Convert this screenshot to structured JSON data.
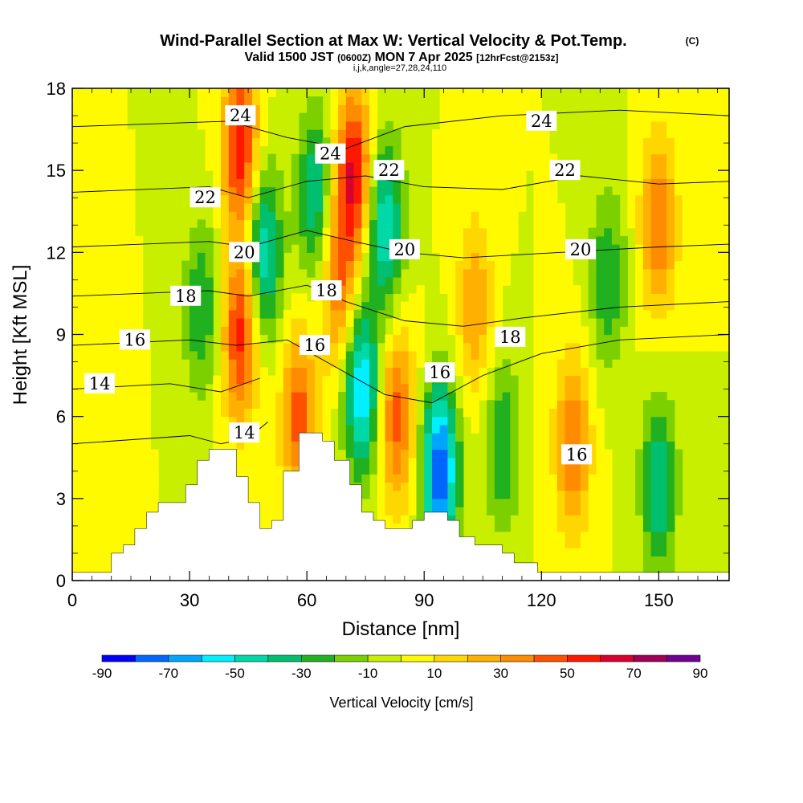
{
  "title": {
    "main": "Wind-Parallel Section at Max W: Vertical Velocity & Pot.Temp.",
    "copyright": "(C)",
    "valid_prefix": "Valid 1500 JST",
    "valid_zulu": "(0600Z)",
    "valid_date": "MON 7 Apr 2025",
    "forecast": "[12hrFcst@2153z]",
    "params": "i,j,k,angle=27,28,24,110"
  },
  "chart_data": {
    "type": "heatmap",
    "title": "Wind-Parallel Section at Max W: Vertical Velocity & Pot.Temp.",
    "xlabel": "Distance [nm]",
    "ylabel": "Height [Kft MSL]",
    "xlim": [
      0,
      168
    ],
    "ylim": [
      0,
      18
    ],
    "x_ticks": [
      0,
      30,
      60,
      90,
      120,
      150
    ],
    "y_ticks": [
      0,
      3,
      6,
      9,
      12,
      15,
      18
    ],
    "colorbar": {
      "label": "Vertical Velocity [cm/s]",
      "ticks": [
        -90,
        -70,
        -50,
        -30,
        -10,
        10,
        30,
        50,
        70,
        90
      ],
      "levels": [
        -90,
        -80,
        -70,
        -60,
        -50,
        -40,
        -30,
        -20,
        -10,
        0,
        10,
        20,
        30,
        40,
        50,
        60,
        70,
        80,
        90
      ],
      "colors": [
        "#0000ff",
        "#0066ff",
        "#00a5ff",
        "#00f0ff",
        "#00d8a8",
        "#00c070",
        "#20b020",
        "#7cd000",
        "#c8ee00",
        "#fffa00",
        "#ffd700",
        "#ffb000",
        "#ff8c00",
        "#ff5000",
        "#ff1800",
        "#d8002c",
        "#a0005a",
        "#700090"
      ]
    },
    "terrain_kft": [
      [
        0,
        0.3
      ],
      [
        10,
        0.3
      ],
      [
        10,
        1.0
      ],
      [
        13,
        1.0
      ],
      [
        13,
        1.3
      ],
      [
        16,
        1.3
      ],
      [
        16,
        1.9
      ],
      [
        19,
        1.9
      ],
      [
        19,
        2.5
      ],
      [
        22,
        2.5
      ],
      [
        22,
        2.85
      ],
      [
        29,
        2.85
      ],
      [
        29,
        3.5
      ],
      [
        32,
        3.5
      ],
      [
        32,
        4.4
      ],
      [
        35,
        4.4
      ],
      [
        35,
        4.8
      ],
      [
        42,
        4.8
      ],
      [
        42,
        3.8
      ],
      [
        45,
        3.8
      ],
      [
        45,
        2.85
      ],
      [
        48,
        2.85
      ],
      [
        48,
        1.9
      ],
      [
        51,
        1.9
      ],
      [
        51,
        2.2
      ],
      [
        54,
        2.2
      ],
      [
        54,
        4.0
      ],
      [
        58,
        4.0
      ],
      [
        58,
        5.4
      ],
      [
        64,
        5.4
      ],
      [
        64,
        5.1
      ],
      [
        67,
        5.1
      ],
      [
        67,
        4.4
      ],
      [
        71,
        4.4
      ],
      [
        71,
        3.5
      ],
      [
        74,
        3.5
      ],
      [
        74,
        2.5
      ],
      [
        77,
        2.5
      ],
      [
        77,
        2.2
      ],
      [
        80,
        2.2
      ],
      [
        80,
        1.9
      ],
      [
        87,
        1.9
      ],
      [
        87,
        2.2
      ],
      [
        90,
        2.2
      ],
      [
        90,
        2.5
      ],
      [
        96,
        2.5
      ],
      [
        96,
        2.2
      ],
      [
        99,
        2.2
      ],
      [
        99,
        1.6
      ],
      [
        103,
        1.6
      ],
      [
        103,
        1.3
      ],
      [
        110,
        1.3
      ],
      [
        110,
        1.0
      ],
      [
        113,
        1.0
      ],
      [
        113,
        0.65
      ],
      [
        119,
        0.65
      ],
      [
        119,
        0.3
      ],
      [
        168,
        0.3
      ]
    ],
    "w_features_cm_s": [
      {
        "x": 8,
        "z": 3.5,
        "w": 10
      },
      {
        "x": 33,
        "z": 10,
        "w": -30
      },
      {
        "x": 43,
        "z": 16,
        "w": 60
      },
      {
        "x": 43,
        "z": 9,
        "w": 55
      },
      {
        "x": 49,
        "z": 12,
        "w": -50
      },
      {
        "x": 58,
        "z": 6,
        "w": 45
      },
      {
        "x": 62,
        "z": 14,
        "w": -40
      },
      {
        "x": 68,
        "z": 11,
        "w": 40
      },
      {
        "x": 72,
        "z": 15,
        "w": 60
      },
      {
        "x": 74,
        "z": 7,
        "w": -60
      },
      {
        "x": 80,
        "z": 13,
        "w": -50
      },
      {
        "x": 83,
        "z": 6,
        "w": 45
      },
      {
        "x": 94,
        "z": 4,
        "w": -80
      },
      {
        "x": 103,
        "z": 10,
        "w": 30
      },
      {
        "x": 110,
        "z": 5,
        "w": -30
      },
      {
        "x": 128,
        "z": 5,
        "w": 40
      },
      {
        "x": 137,
        "z": 11,
        "w": -30
      },
      {
        "x": 150,
        "z": 3.5,
        "w": -40
      },
      {
        "x": 150,
        "z": 13,
        "w": 40
      }
    ],
    "theta_contours": [
      {
        "label": "14",
        "points": [
          [
            0,
            5.0
          ],
          [
            30,
            5.3
          ],
          [
            38,
            5.0
          ],
          [
            45,
            5.2
          ],
          [
            50,
            5.8
          ]
        ]
      },
      {
        "label": "14",
        "points": [
          [
            0,
            7.0
          ],
          [
            25,
            7.2
          ],
          [
            38,
            6.9
          ],
          [
            48,
            7.4
          ]
        ]
      },
      {
        "label": "16",
        "points": [
          [
            0,
            8.6
          ],
          [
            30,
            8.8
          ],
          [
            42,
            8.6
          ],
          [
            55,
            8.8
          ],
          [
            65,
            8.0
          ],
          [
            80,
            6.8
          ],
          [
            92,
            6.5
          ],
          [
            105,
            7.5
          ],
          [
            120,
            8.3
          ],
          [
            140,
            8.8
          ],
          [
            168,
            9.0
          ]
        ]
      },
      {
        "label": "18",
        "points": [
          [
            0,
            10.4
          ],
          [
            35,
            10.6
          ],
          [
            45,
            10.4
          ],
          [
            60,
            10.8
          ],
          [
            70,
            10.2
          ],
          [
            85,
            9.5
          ],
          [
            100,
            9.3
          ],
          [
            115,
            9.6
          ],
          [
            140,
            10.0
          ],
          [
            168,
            10.2
          ]
        ]
      },
      {
        "label": "20",
        "points": [
          [
            0,
            12.2
          ],
          [
            35,
            12.4
          ],
          [
            45,
            12.2
          ],
          [
            60,
            12.8
          ],
          [
            72,
            12.4
          ],
          [
            85,
            12.0
          ],
          [
            100,
            11.8
          ],
          [
            125,
            12.0
          ],
          [
            150,
            12.2
          ],
          [
            168,
            12.3
          ]
        ]
      },
      {
        "label": "22",
        "points": [
          [
            0,
            14.2
          ],
          [
            35,
            14.4
          ],
          [
            45,
            14.0
          ],
          [
            60,
            14.6
          ],
          [
            75,
            14.8
          ],
          [
            90,
            14.4
          ],
          [
            110,
            14.3
          ],
          [
            130,
            14.8
          ],
          [
            150,
            14.5
          ],
          [
            168,
            14.6
          ]
        ]
      },
      {
        "label": "24",
        "points": [
          [
            0,
            16.6
          ],
          [
            40,
            16.8
          ],
          [
            55,
            16.2
          ],
          [
            70,
            15.8
          ],
          [
            85,
            16.6
          ],
          [
            110,
            17.0
          ],
          [
            140,
            17.2
          ],
          [
            168,
            17.0
          ]
        ]
      }
    ],
    "contour_labels": [
      {
        "text": "14",
        "x": 7,
        "z": 7.2
      },
      {
        "text": "16",
        "x": 16,
        "z": 8.8
      },
      {
        "text": "18",
        "x": 29,
        "z": 10.4
      },
      {
        "text": "20",
        "x": 44,
        "z": 12.0
      },
      {
        "text": "22",
        "x": 34,
        "z": 14.0
      },
      {
        "text": "24",
        "x": 43,
        "z": 17.0
      },
      {
        "text": "14",
        "x": 44,
        "z": 5.4
      },
      {
        "text": "16",
        "x": 62,
        "z": 8.6
      },
      {
        "text": "18",
        "x": 65,
        "z": 10.6
      },
      {
        "text": "24",
        "x": 66,
        "z": 15.6
      },
      {
        "text": "22",
        "x": 81,
        "z": 15.0
      },
      {
        "text": "20",
        "x": 85,
        "z": 12.1
      },
      {
        "text": "16",
        "x": 94,
        "z": 7.6
      },
      {
        "text": "18",
        "x": 112,
        "z": 8.9
      },
      {
        "text": "24",
        "x": 120,
        "z": 16.8
      },
      {
        "text": "22",
        "x": 126,
        "z": 15.0
      },
      {
        "text": "20",
        "x": 130,
        "z": 12.1
      },
      {
        "text": "16",
        "x": 129,
        "z": 4.6
      }
    ]
  }
}
